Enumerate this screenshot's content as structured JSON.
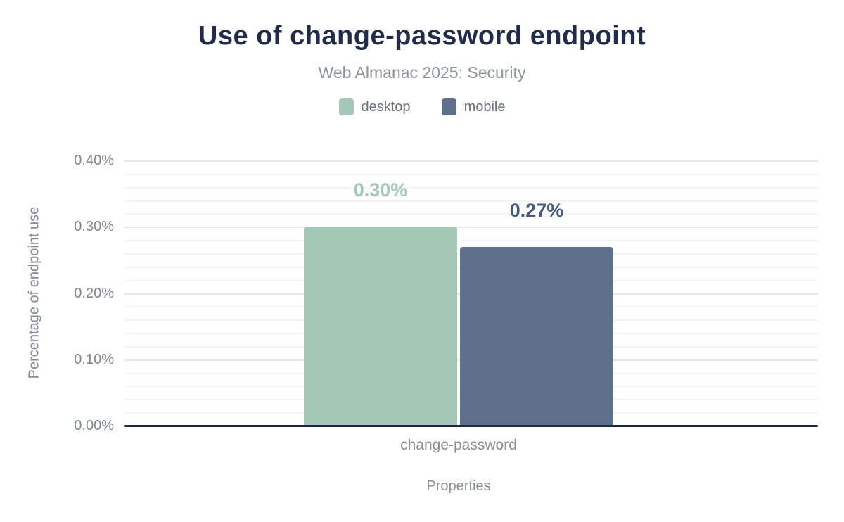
{
  "chart_data": {
    "type": "bar",
    "title": "Use of change-password endpoint",
    "subtitle": "Web Almanac 2025: Security",
    "categories": [
      "change-password"
    ],
    "series": [
      {
        "name": "desktop",
        "values": [
          0.3
        ],
        "data_labels": [
          "0.30%"
        ],
        "color": "#a5c8b6",
        "label_color": "#a3c8b4"
      },
      {
        "name": "mobile",
        "values": [
          0.27
        ],
        "data_labels": [
          "0.27%"
        ],
        "color": "#5f708b",
        "label_color": "#47597c"
      }
    ],
    "xlabel": "Properties",
    "ylabel": "Percentage of endpoint use",
    "ylim": [
      0,
      0.4
    ],
    "y_major_step": 0.1,
    "y_minor_step": 0.02,
    "y_tick_labels": [
      "0.00%",
      "0.10%",
      "0.20%",
      "0.30%",
      "0.40%"
    ],
    "grid": true,
    "legend_position": "top"
  },
  "colors": {
    "title": "#212c4a",
    "subtitle": "#8d939d",
    "axis_baseline": "#1a2942",
    "grid_major": "#e7e7eb",
    "grid_minor": "#f4f4f6",
    "tick_text": "#7e8590",
    "background": "#ffffff"
  }
}
